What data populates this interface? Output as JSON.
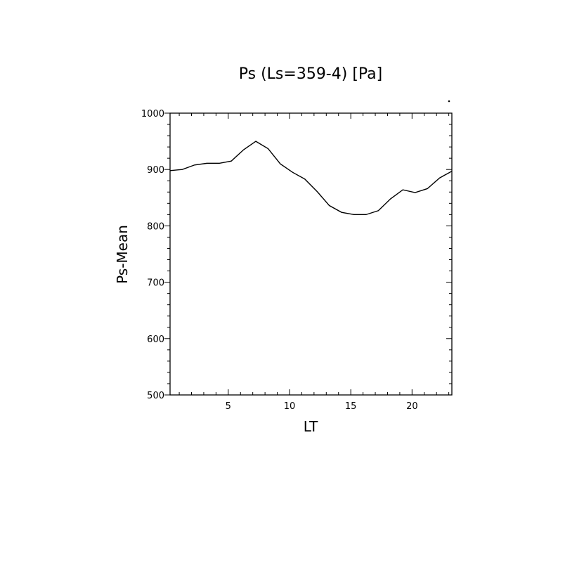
{
  "chart_data": {
    "type": "line",
    "title": "Ps (Ls=359-4) [Pa]",
    "xlabel": "LT",
    "ylabel": "Ps-Mean",
    "xlim": [
      0.25,
      23.25
    ],
    "ylim": [
      500,
      1000
    ],
    "x_ticks": [
      5,
      10,
      15,
      20
    ],
    "y_ticks": [
      500,
      600,
      700,
      800,
      900,
      1000
    ],
    "grid": false,
    "x": [
      0.25,
      1.25,
      2.25,
      3.25,
      4.25,
      5.25,
      6.25,
      7.25,
      8.25,
      9.25,
      10.25,
      11.25,
      12.25,
      13.25,
      14.25,
      15.25,
      16.25,
      17.25,
      18.25,
      19.25,
      20.25,
      21.25,
      22.25,
      23.25
    ],
    "series": [
      {
        "values": [
          898,
          900,
          908,
          911,
          911,
          915,
          935,
          950,
          937,
          910,
          895,
          883,
          861,
          836,
          824,
          820,
          820,
          827,
          848,
          864,
          859,
          866,
          885,
          897
        ]
      }
    ]
  }
}
